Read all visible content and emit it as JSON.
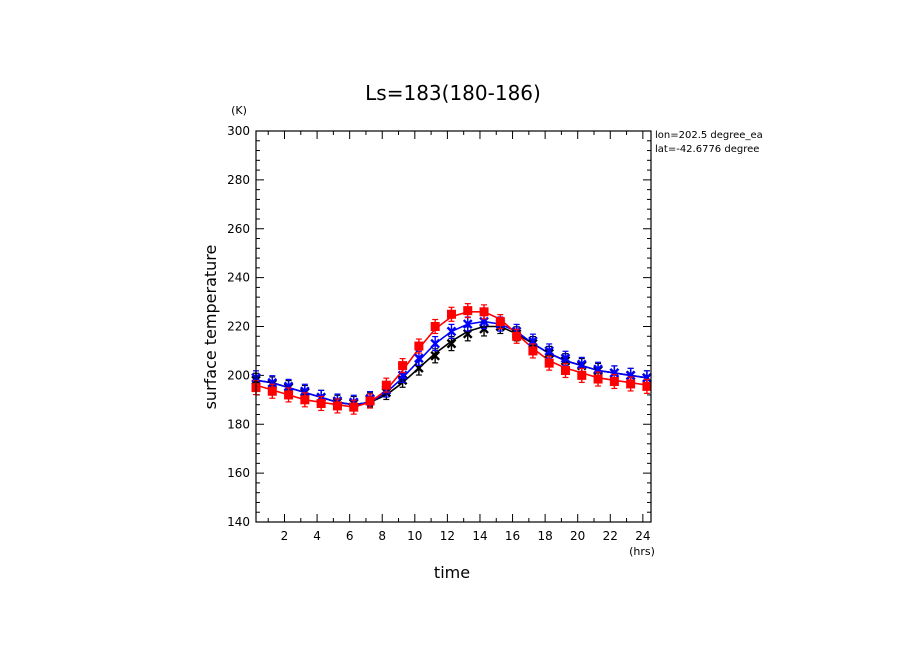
{
  "chart_data": {
    "type": "line",
    "title": "Ls=183(180-186)",
    "xlabel": "time",
    "ylabel": "surface temperature",
    "x_unit": "(hrs)",
    "y_unit": "(K)",
    "xlim": [
      0.25,
      24.5
    ],
    "ylim": [
      140,
      300
    ],
    "x_ticks": [
      2,
      4,
      6,
      8,
      10,
      12,
      14,
      16,
      18,
      20,
      22,
      24
    ],
    "y_ticks": [
      140,
      160,
      180,
      200,
      220,
      240,
      260,
      280,
      300
    ],
    "grid": false,
    "annotations": [
      "lon=202.5 degree_ea",
      "lat=-42.6776 degree"
    ],
    "x": [
      0.25,
      1.25,
      2.25,
      3.25,
      4.25,
      5.25,
      6.25,
      7.25,
      8.25,
      9.25,
      10.25,
      11.25,
      12.25,
      13.25,
      14.25,
      15.25,
      16.25,
      17.25,
      18.25,
      19.25,
      20.25,
      21.25,
      22.25,
      23.25,
      24.25
    ],
    "series": [
      {
        "color": "#000000",
        "marker": "x",
        "line": [
          198,
          197,
          195,
          193,
          191,
          189,
          188,
          189,
          192,
          197,
          203,
          209,
          214,
          218,
          220,
          220,
          217,
          213,
          209,
          206,
          204,
          202,
          201,
          200,
          199
        ],
        "values": [
          198,
          196.5,
          195,
          193,
          191,
          189,
          188.5,
          190,
          193,
          198,
          203,
          208,
          213,
          217,
          219,
          220,
          217,
          213,
          209,
          206,
          204,
          202,
          201,
          200,
          199
        ]
      },
      {
        "color": "#0000ff",
        "marker": "x",
        "line": [
          198,
          197,
          195,
          193,
          191,
          189,
          188,
          189,
          193,
          199,
          206,
          213,
          218,
          221,
          222,
          221,
          218,
          213,
          209,
          206,
          204,
          202,
          201,
          200,
          199
        ],
        "values": [
          199,
          197,
          195.5,
          193.5,
          191,
          189.5,
          189,
          190.5,
          194,
          200,
          207,
          213,
          218,
          221,
          222,
          221,
          218,
          214,
          210,
          207,
          204.5,
          202.5,
          201,
          200,
          199
        ]
      },
      {
        "color": "#ff0000",
        "marker": "square",
        "line": [
          196,
          194,
          192,
          190,
          189,
          188,
          187,
          189,
          194,
          202,
          211,
          219,
          224,
          226,
          226,
          223,
          217,
          211,
          206,
          203,
          201,
          199,
          198,
          197,
          196
        ],
        "values": [
          195,
          193.5,
          192,
          190,
          188.5,
          187.5,
          187,
          189.5,
          196,
          204,
          212,
          220,
          225,
          226.5,
          226,
          222,
          216,
          210,
          205,
          202,
          200,
          198.5,
          197.5,
          196.5,
          195.5
        ]
      }
    ]
  }
}
